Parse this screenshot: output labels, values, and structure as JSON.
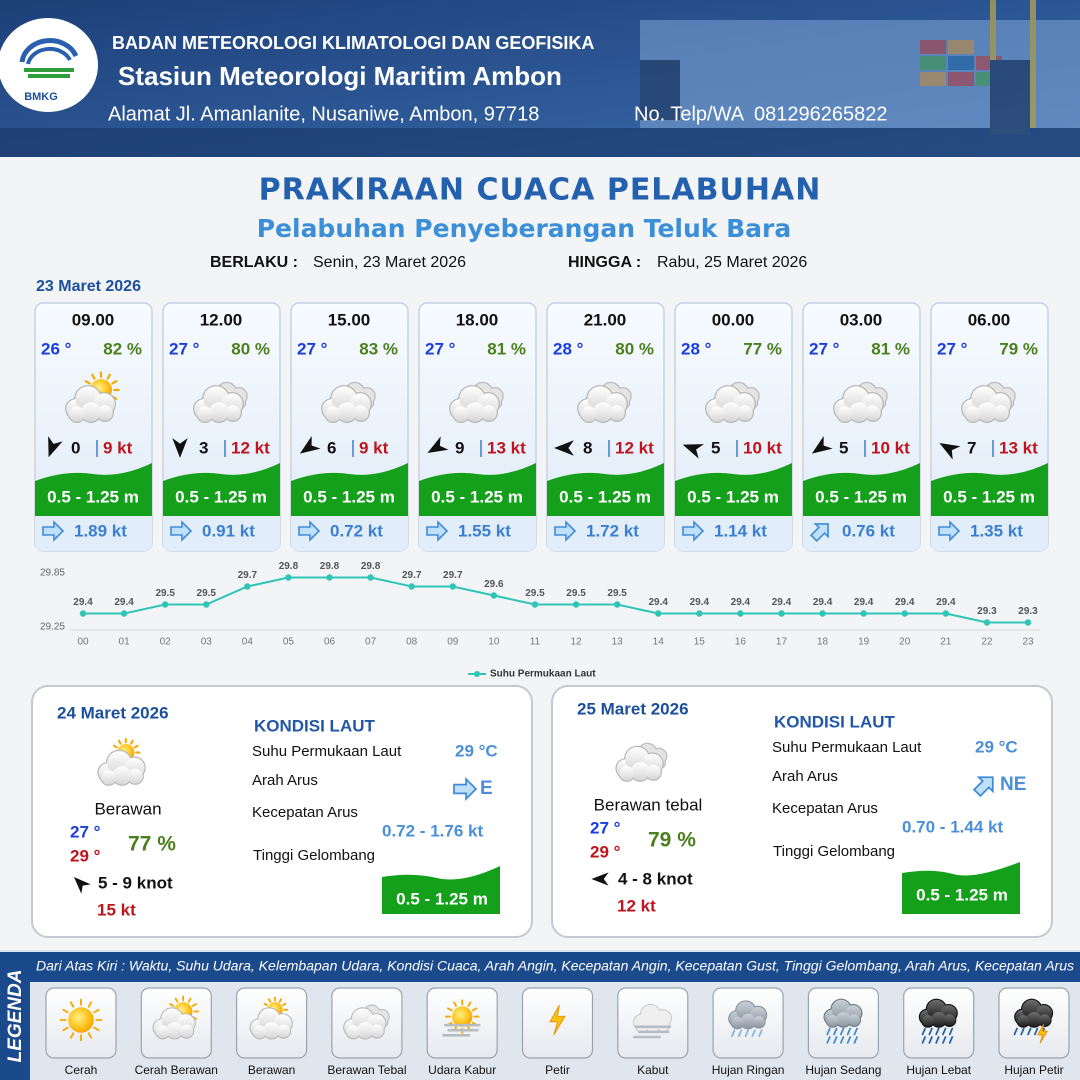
{
  "header": {
    "logo_text": "BMKG",
    "organization": "BADAN METEOROLOGI KLIMATOLOGI DAN GEOFISIKA",
    "station": "Stasiun Meteorologi Maritim Ambon",
    "address": "Alamat Jl. Amanlanite, Nusaniwe, Ambon, 97718",
    "phone": "No. Telp/WA  081296265822"
  },
  "title": "PRAKIRAAN CUACA PELABUHAN",
  "subtitle": "Pelabuhan Penyeberangan Teluk Bara",
  "validity": {
    "from_label": "BERLAKU :",
    "from": "Senin, 23 Maret 2026",
    "to_label": "HINGGA :",
    "to": "Rabu, 25 Maret 2026"
  },
  "today": {
    "date": "23 Maret 2026",
    "cards": [
      {
        "time": "09.00",
        "temperature": "26 °",
        "humidity": "82 %",
        "condition": "Cerah Berawan",
        "wind_direction": 200,
        "wind_speed": "0",
        "gust": "9 kt",
        "wave": "0.5 - 1.25 m",
        "current_direction": 90,
        "current_speed": "1.89 kt"
      },
      {
        "time": "12.00",
        "temperature": "27 °",
        "humidity": "80 %",
        "condition": "Berawan Tebal",
        "wind_direction": 180,
        "wind_speed": "3",
        "gust": "12 kt",
        "wave": "0.5 - 1.25 m",
        "current_direction": 90,
        "current_speed": "0.91 kt"
      },
      {
        "time": "15.00",
        "temperature": "27 °",
        "humidity": "83 %",
        "condition": "Berawan Tebal",
        "wind_direction": 235,
        "wind_speed": "6",
        "gust": "9 kt",
        "wave": "0.5 - 1.25 m",
        "current_direction": 90,
        "current_speed": "0.72 kt"
      },
      {
        "time": "18.00",
        "temperature": "27 °",
        "humidity": "81 %",
        "condition": "Berawan Tebal",
        "wind_direction": 240,
        "wind_speed": "9",
        "gust": "13 kt",
        "wave": "0.5 - 1.25 m",
        "current_direction": 90,
        "current_speed": "1.55 kt"
      },
      {
        "time": "21.00",
        "temperature": "28 °",
        "humidity": "80 %",
        "condition": "Berawan Tebal",
        "wind_direction": 270,
        "wind_speed": "8",
        "gust": "12 kt",
        "wave": "0.5 - 1.25 m",
        "current_direction": 90,
        "current_speed": "1.72 kt"
      },
      {
        "time": "00.00",
        "temperature": "28 °",
        "humidity": "77 %",
        "condition": "Berawan Tebal",
        "wind_direction": 290,
        "wind_speed": "5",
        "gust": "10 kt",
        "wave": "0.5 - 1.25 m",
        "current_direction": 90,
        "current_speed": "1.14 kt"
      },
      {
        "time": "03.00",
        "temperature": "27 °",
        "humidity": "81 %",
        "condition": "Berawan Tebal",
        "wind_direction": 235,
        "wind_speed": "5",
        "gust": "10 kt",
        "wave": "0.5 - 1.25 m",
        "current_direction": 45,
        "current_speed": "0.76 kt"
      },
      {
        "time": "06.00",
        "temperature": "27 °",
        "humidity": "79 %",
        "condition": "Berawan Tebal",
        "wind_direction": 300,
        "wind_speed": "7",
        "gust": "13 kt",
        "wave": "0.5 - 1.25 m",
        "current_direction": 90,
        "current_speed": "1.35 kt"
      }
    ]
  },
  "chart_data": {
    "type": "line",
    "categories": [
      "00",
      "01",
      "02",
      "03",
      "04",
      "05",
      "06",
      "07",
      "08",
      "09",
      "10",
      "11",
      "12",
      "13",
      "14",
      "15",
      "16",
      "17",
      "18",
      "19",
      "20",
      "21",
      "22",
      "23"
    ],
    "series": [
      {
        "name": "Suhu Permukaan Laut",
        "color": "#2ec4b6",
        "values": [
          29.4,
          29.4,
          29.5,
          29.5,
          29.7,
          29.8,
          29.8,
          29.8,
          29.7,
          29.7,
          29.6,
          29.5,
          29.5,
          29.5,
          29.4,
          29.4,
          29.4,
          29.4,
          29.4,
          29.4,
          29.4,
          29.4,
          29.3,
          29.3
        ]
      }
    ],
    "ylim": [
      29.25,
      29.85
    ],
    "yticks": [
      29.25,
      29.85
    ],
    "grid": false,
    "legend": "bottom"
  },
  "forecast_days": [
    {
      "date": "24 Maret 2026",
      "condition": "Berawan",
      "temp_min": "27 °",
      "temp_max": "29 °",
      "humidity": "77 %",
      "wind_direction": 315,
      "wind": "5 - 9 knot",
      "gust": "15 kt",
      "sea": {
        "title": "KONDISI LAUT",
        "sst_label": "Suhu Permukaan Laut",
        "sst": "29 °C",
        "current_direction_label": "Arah Arus",
        "current_direction": "E",
        "current_angle": 90,
        "current_speed_label": "Kecepatan Arus",
        "current_speed": "0.72 - 1.76 kt",
        "wave_label": "Tinggi Gelombang",
        "wave": "0.5 - 1.25 m"
      }
    },
    {
      "date": "25 Maret 2026",
      "condition": "Berawan tebal",
      "temp_min": "27 °",
      "temp_max": "29 °",
      "humidity": "79 %",
      "wind_direction": 270,
      "wind": "4 - 8 knot",
      "gust": "12 kt",
      "sea": {
        "title": "KONDISI LAUT",
        "sst_label": "Suhu Permukaan Laut",
        "sst": "29 °C",
        "current_direction_label": "Arah Arus",
        "current_direction": "NE",
        "current_angle": 45,
        "current_speed_label": "Kecepatan Arus",
        "current_speed": "0.70 - 1.44 kt",
        "wave_label": "Tinggi Gelombang",
        "wave": "0.5 - 1.25 m"
      }
    }
  ],
  "legend": {
    "title": "LEGENDA",
    "description": "Dari Atas Kiri : Waktu, Suhu Udara, Kelembapan Udara, Kondisi Cuaca, Arah Angin, Kecepatan Angin, Kecepatan Gust, Tinggi Gelombang, Arah Arus, Kecepatan Arus",
    "items": [
      "Cerah",
      "Cerah Berawan",
      "Berawan",
      "Berawan Tebal",
      "Udara Kabur",
      "Petir",
      "Kabut",
      "Hujan Ringan",
      "Hujan Sedang",
      "Hujan Lebat",
      "Hujan Petir"
    ]
  }
}
